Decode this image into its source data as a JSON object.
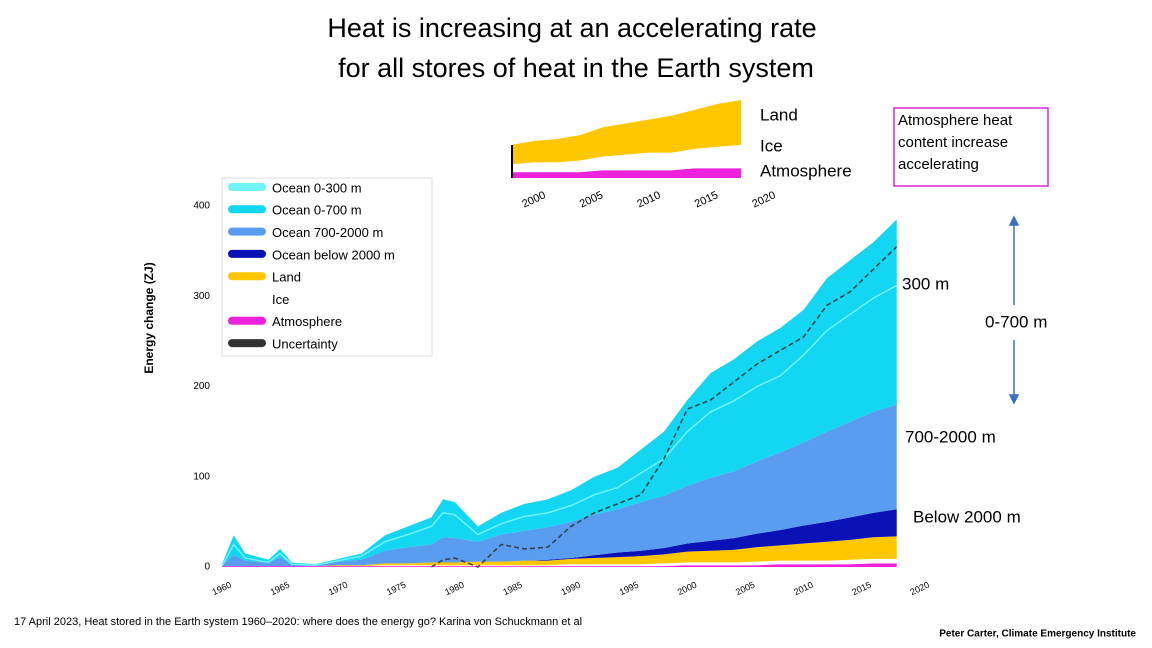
{
  "title": [
    "Heat is increasing at an accelerating rate",
    "for all stores of heat in the Earth system"
  ],
  "chart_data": [
    {
      "type": "area",
      "ylabel": "Energy change (ZJ)",
      "x": [
        1960,
        1961,
        1962,
        1964,
        1965,
        1966,
        1968,
        1970,
        1972,
        1974,
        1976,
        1978,
        1979,
        1980,
        1982,
        1984,
        1986,
        1988,
        1990,
        1992,
        1994,
        1996,
        1998,
        2000,
        2002,
        2004,
        2006,
        2008,
        2010,
        2012,
        2014,
        2016,
        2018
      ],
      "xlim": [
        1960,
        2020
      ],
      "xticks": [
        1960,
        1965,
        1970,
        1975,
        1980,
        1985,
        1990,
        1995,
        2000,
        2005,
        2010,
        2015,
        2020
      ],
      "ylim": [
        0,
        400
      ],
      "yticks": [
        0,
        100,
        200,
        300,
        400
      ],
      "legend": "upper-left",
      "series": [
        {
          "name": "Ocean 0-300 m",
          "color": "#6ff4f8",
          "type": "line",
          "values": [
            1,
            25,
            10,
            5,
            15,
            3,
            2,
            7,
            12,
            28,
            36,
            45,
            60,
            58,
            36,
            48,
            56,
            60,
            68,
            80,
            88,
            104,
            120,
            150,
            172,
            184,
            200,
            212,
            235,
            262,
            280,
            298,
            312
          ]
        },
        {
          "name": "Ocean 0-700 m",
          "color": "#12d6f2",
          "type": "stack",
          "values": [
            1,
            22,
            8,
            3,
            9,
            2,
            1,
            3,
            7,
            17,
            23,
            30,
            42,
            40,
            17,
            24,
            30,
            31,
            35,
            42,
            46,
            58,
            71,
            95,
            116,
            124,
            133,
            138,
            147,
            170,
            179,
            188,
            205
          ]
        },
        {
          "name": "Ocean 700-2000 m",
          "color": "#5a9cef",
          "type": "stack",
          "values": [
            1,
            12,
            6,
            4,
            10,
            2,
            1,
            4,
            6,
            14,
            18,
            20,
            28,
            27,
            22,
            30,
            33,
            36,
            40,
            45,
            48,
            54,
            58,
            64,
            70,
            74,
            80,
            86,
            92,
            100,
            106,
            112,
            116
          ]
        },
        {
          "name": "Ocean below 2000 m",
          "color": "#0a12b5",
          "type": "stack",
          "values": [
            0,
            0,
            0,
            0,
            0,
            0,
            0,
            0,
            0,
            0,
            0,
            0,
            0,
            0,
            0,
            0,
            0,
            1,
            1,
            3,
            5,
            6,
            7,
            9,
            11,
            13,
            15,
            17,
            20,
            22,
            25,
            27,
            30
          ]
        },
        {
          "name": "Land",
          "color": "#ffc700",
          "type": "stack",
          "values": [
            0,
            0,
            0,
            0,
            0,
            0,
            0,
            1,
            1,
            2,
            2,
            3,
            3,
            3,
            4,
            4,
            5,
            5,
            6,
            7,
            8,
            9,
            10,
            12,
            13,
            14,
            16,
            17,
            19,
            21,
            22,
            24,
            25
          ]
        },
        {
          "name": "Ice",
          "color": "#ffffff",
          "type": "stack",
          "values": [
            0,
            0,
            0,
            0,
            0,
            0,
            0,
            0,
            0,
            1,
            1,
            1,
            1,
            1,
            1,
            1,
            1,
            1,
            2,
            2,
            2,
            2,
            3,
            3,
            3,
            3,
            4,
            4,
            4,
            4,
            5,
            5,
            5
          ]
        },
        {
          "name": "Atmosphere",
          "color": "#ee22dd",
          "type": "stack",
          "values": [
            1,
            1,
            1,
            1,
            1,
            1,
            1,
            1,
            1,
            1,
            1,
            1,
            1,
            1,
            1,
            1,
            1,
            1,
            1,
            1,
            1,
            1,
            1,
            2,
            2,
            2,
            2,
            3,
            3,
            3,
            3,
            4,
            4
          ]
        },
        {
          "name": "Uncertainty",
          "color": "#333333",
          "type": "line",
          "dashed": true,
          "values": [
            null,
            null,
            null,
            null,
            null,
            null,
            null,
            null,
            null,
            null,
            null,
            0,
            8,
            10,
            0,
            25,
            20,
            22,
            45,
            60,
            70,
            80,
            120,
            175,
            185,
            205,
            225,
            240,
            255,
            290,
            305,
            330,
            355
          ]
        }
      ],
      "annotations": [
        "300 m",
        "0-700 m",
        "700-2000 m",
        "Below 2000 m"
      ]
    },
    {
      "type": "area",
      "x": [
        1998,
        2000,
        2002,
        2004,
        2006,
        2008,
        2010,
        2012,
        2014,
        2016,
        2018
      ],
      "xlim": [
        1998,
        2020
      ],
      "xticks": [
        2000,
        2005,
        2010,
        2015,
        2020
      ],
      "ylim": [
        0,
        40
      ],
      "series": [
        {
          "name": "Land",
          "color": "#ffc700",
          "values": [
            10,
            11,
            12,
            13,
            15,
            16,
            17,
            19,
            20,
            22,
            23
          ]
        },
        {
          "name": "Ice",
          "color": "#ffffff",
          "values": [
            4,
            5,
            5,
            6,
            7,
            8,
            9,
            9,
            10,
            11,
            12
          ]
        },
        {
          "name": "Atmosphere",
          "color": "#ee22dd",
          "values": [
            3,
            3,
            3,
            3,
            4,
            4,
            4,
            4,
            5,
            5,
            5
          ]
        }
      ],
      "note": "Atmosphere heat content increase accelerating"
    }
  ],
  "footer": {
    "source": "17 April 2023, Heat stored in the Earth system 1960–2020: where does the energy go? Karina von Schuckmann et al",
    "credit": "Peter Carter, Climate Emergency Institute"
  }
}
